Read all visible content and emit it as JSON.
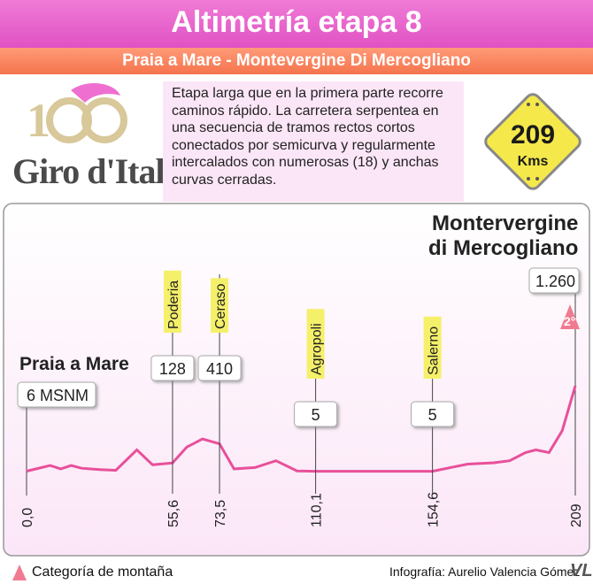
{
  "title": "Altimetría etapa 8",
  "subtitle": "Praia a Mare  - Montevergine Di Mercogliano",
  "logo": {
    "text": "Giro d'Italia",
    "number": "100"
  },
  "description": "Etapa larga que en la primera parte recorre caminos rápido. La carretera serpentea en una secuencia de tramos rectos cortos conectados por semicurva y regularmente intercalados con numerosas (18) y anchas curvas cerradas.",
  "distance": {
    "value": "209",
    "unit": "Kms"
  },
  "colors": {
    "pink": "#e052c4",
    "orange": "#f5744c",
    "yellow": "#f5f06a",
    "profile": "#e8509a",
    "bg_pink": "#fbe6f7"
  },
  "chart_data": {
    "type": "line",
    "start": {
      "name": "Praia a Mare",
      "altitude_label": "6 MSNM"
    },
    "finish": {
      "name_line1": "Montervergine",
      "name_line2": "di Mercogliano",
      "altitude_label": "1.260",
      "category": "2°"
    },
    "x": [
      0,
      9,
      13,
      17,
      21,
      28,
      34,
      42,
      48,
      55.6,
      61,
      67,
      73.5,
      79,
      87,
      95,
      103,
      110.1,
      125,
      140,
      154.6,
      168,
      178,
      184,
      190,
      194,
      199,
      204,
      209
    ],
    "y": [
      6,
      90,
      40,
      90,
      50,
      30,
      20,
      320,
      100,
      128,
      360,
      480,
      410,
      40,
      60,
      160,
      10,
      5,
      5,
      5,
      5,
      110,
      130,
      160,
      280,
      320,
      280,
      600,
      1260
    ],
    "xlim": [
      0,
      209
    ],
    "ylim": [
      0,
      1300
    ],
    "tick_labels": [
      "0,0",
      "55,6",
      "73,5",
      "110,1",
      "154,6",
      "209"
    ],
    "tick_values": [
      0,
      55.6,
      73.5,
      110.1,
      154.6,
      209
    ],
    "places": [
      {
        "name": "Poderia",
        "km": 55.6,
        "altitude": "128"
      },
      {
        "name": "Ceraso",
        "km": 73.5,
        "altitude": "410"
      },
      {
        "name": "Agropoli",
        "km": 110.1,
        "altitude": "5"
      },
      {
        "name": "Salerno",
        "km": 154.6,
        "altitude": "5"
      }
    ]
  },
  "footer": {
    "legend": "Categoría de montaña",
    "credit": "Infografía: Aurelio Valencia Gómez",
    "mark": "VL"
  }
}
